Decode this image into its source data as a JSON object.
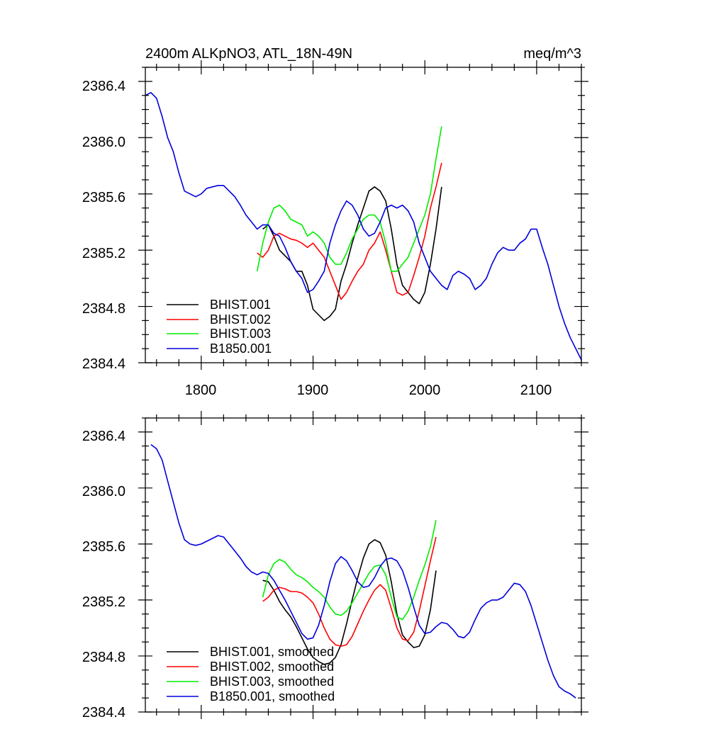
{
  "colors": {
    "BHIST.001": "#000000",
    "BHIST.002": "#ff0000",
    "BHIST.003": "#00ee00",
    "B1850.001": "#0000dd"
  },
  "chart_data": [
    {
      "type": "line",
      "title_left": "2400m ALKpNO3, ATL_18N-49N",
      "title_right": "meq/m^3",
      "xlim": [
        1750,
        2140
      ],
      "ylim": [
        2384.4,
        2386.5
      ],
      "x_ticks": [
        1800,
        1900,
        2000,
        2100
      ],
      "x_tick_labels": [
        "1800",
        "1900",
        "2000",
        "2100"
      ],
      "y_ticks": [
        2384.4,
        2384.8,
        2385.2,
        2385.6,
        2386.0,
        2386.4
      ],
      "y_tick_labels": [
        "2384.4",
        "2384.8",
        "2385.2",
        "2385.6",
        "2386.0",
        "2386.4"
      ],
      "legend_position": "bottom-left",
      "series": [
        {
          "name": "BHIST.001",
          "legend": "BHIST.001",
          "x": [
            1855,
            1860,
            1865,
            1870,
            1875,
            1880,
            1885,
            1890,
            1895,
            1900,
            1905,
            1910,
            1915,
            1920,
            1925,
            1930,
            1935,
            1940,
            1945,
            1950,
            1955,
            1960,
            1965,
            1970,
            1975,
            1980,
            1985,
            1990,
            1995,
            2000,
            2005,
            2010,
            2015
          ],
          "y": [
            2385.35,
            2385.38,
            2385.3,
            2385.2,
            2385.16,
            2385.12,
            2385.05,
            2385.05,
            2384.95,
            2384.78,
            2384.74,
            2384.7,
            2384.73,
            2384.78,
            2384.98,
            2385.1,
            2385.25,
            2385.38,
            2385.5,
            2385.62,
            2385.65,
            2385.62,
            2385.55,
            2385.35,
            2385.1,
            2384.95,
            2384.9,
            2384.85,
            2384.82,
            2384.9,
            2385.1,
            2385.35,
            2385.65
          ]
        },
        {
          "name": "BHIST.002",
          "legend": "BHIST.002",
          "x": [
            1850,
            1855,
            1860,
            1865,
            1870,
            1875,
            1880,
            1885,
            1890,
            1895,
            1900,
            1905,
            1910,
            1915,
            1920,
            1925,
            1930,
            1935,
            1940,
            1945,
            1950,
            1955,
            1960,
            1965,
            1970,
            1975,
            1980,
            1985,
            1990,
            1995,
            2000,
            2005,
            2010,
            2015
          ],
          "y": [
            2385.18,
            2385.15,
            2385.2,
            2385.3,
            2385.32,
            2385.3,
            2385.28,
            2385.27,
            2385.25,
            2385.22,
            2385.25,
            2385.2,
            2385.15,
            2385.05,
            2384.95,
            2384.85,
            2384.9,
            2384.98,
            2385.05,
            2385.1,
            2385.2,
            2385.25,
            2385.33,
            2385.2,
            2385.05,
            2384.9,
            2384.88,
            2384.9,
            2385.02,
            2385.15,
            2385.3,
            2385.5,
            2385.65,
            2385.82
          ]
        },
        {
          "name": "BHIST.003",
          "legend": "BHIST.003",
          "x": [
            1850,
            1855,
            1860,
            1865,
            1870,
            1875,
            1880,
            1885,
            1890,
            1895,
            1900,
            1905,
            1910,
            1915,
            1920,
            1925,
            1930,
            1935,
            1940,
            1945,
            1950,
            1955,
            1960,
            1965,
            1970,
            1975,
            1980,
            1985,
            1990,
            1995,
            2000,
            2005,
            2010,
            2015
          ],
          "y": [
            2385.05,
            2385.25,
            2385.4,
            2385.5,
            2385.52,
            2385.48,
            2385.42,
            2385.4,
            2385.38,
            2385.3,
            2385.33,
            2385.3,
            2385.25,
            2385.15,
            2385.1,
            2385.1,
            2385.18,
            2385.28,
            2385.35,
            2385.42,
            2385.45,
            2385.45,
            2385.4,
            2385.25,
            2385.05,
            2385.05,
            2385.1,
            2385.15,
            2385.25,
            2385.35,
            2385.45,
            2385.6,
            2385.85,
            2386.08
          ]
        },
        {
          "name": "B1850.001",
          "legend": "B1850.001",
          "x": [
            1750,
            1755,
            1760,
            1765,
            1770,
            1775,
            1780,
            1785,
            1790,
            1795,
            1800,
            1805,
            1810,
            1815,
            1820,
            1825,
            1830,
            1835,
            1840,
            1845,
            1850,
            1855,
            1860,
            1865,
            1870,
            1875,
            1880,
            1885,
            1890,
            1895,
            1900,
            1905,
            1910,
            1915,
            1920,
            1925,
            1930,
            1935,
            1940,
            1945,
            1950,
            1955,
            1960,
            1965,
            1970,
            1975,
            1980,
            1985,
            1990,
            1995,
            2000,
            2005,
            2010,
            2015,
            2020,
            2025,
            2030,
            2035,
            2040,
            2045,
            2050,
            2055,
            2060,
            2065,
            2070,
            2075,
            2080,
            2085,
            2090,
            2095,
            2100,
            2105,
            2110,
            2115,
            2120,
            2125,
            2130,
            2135,
            2140
          ],
          "y": [
            2386.3,
            2386.32,
            2386.28,
            2386.15,
            2386.0,
            2385.9,
            2385.75,
            2385.62,
            2385.6,
            2385.58,
            2385.6,
            2385.64,
            2385.65,
            2385.66,
            2385.66,
            2385.62,
            2385.58,
            2385.52,
            2385.45,
            2385.4,
            2385.35,
            2385.38,
            2385.38,
            2385.32,
            2385.3,
            2385.22,
            2385.12,
            2385.05,
            2385.0,
            2384.9,
            2384.92,
            2384.98,
            2385.05,
            2385.25,
            2385.38,
            2385.48,
            2385.55,
            2385.52,
            2385.45,
            2385.35,
            2385.3,
            2385.32,
            2385.4,
            2385.5,
            2385.52,
            2385.5,
            2385.52,
            2385.48,
            2385.4,
            2385.25,
            2385.15,
            2385.05,
            2385.0,
            2384.95,
            2384.92,
            2385.02,
            2385.05,
            2385.03,
            2385.0,
            2384.92,
            2384.95,
            2385.0,
            2385.1,
            2385.18,
            2385.22,
            2385.2,
            2385.2,
            2385.25,
            2385.28,
            2385.35,
            2385.35,
            2385.22,
            2385.1,
            2384.95,
            2384.8,
            2384.68,
            2384.58,
            2384.5,
            2384.42
          ]
        }
      ]
    },
    {
      "type": "line",
      "xlim": [
        1750,
        2140
      ],
      "ylim": [
        2384.4,
        2386.5
      ],
      "x_ticks": [
        1800,
        1900,
        2000,
        2100
      ],
      "y_ticks": [
        2384.4,
        2384.8,
        2385.2,
        2385.6,
        2386.0,
        2386.4
      ],
      "y_tick_labels": [
        "2384.4",
        "2384.8",
        "2385.2",
        "2385.6",
        "2386.0",
        "2386.4"
      ],
      "legend_position": "bottom-left",
      "series": [
        {
          "name": "BHIST.001",
          "legend": "BHIST.001, smoothed",
          "x": [
            1855,
            1860,
            1865,
            1870,
            1875,
            1880,
            1885,
            1890,
            1895,
            1900,
            1905,
            1910,
            1915,
            1920,
            1925,
            1930,
            1935,
            1940,
            1945,
            1950,
            1955,
            1960,
            1965,
            1970,
            1975,
            1980,
            1985,
            1990,
            1995,
            2000,
            2005,
            2010
          ],
          "y": [
            2385.34,
            2385.33,
            2385.27,
            2385.19,
            2385.13,
            2385.08,
            2385.01,
            2384.93,
            2384.85,
            2384.79,
            2384.76,
            2384.74,
            2384.75,
            2384.79,
            2384.88,
            2385.03,
            2385.2,
            2385.36,
            2385.5,
            2385.6,
            2385.63,
            2385.61,
            2385.52,
            2385.33,
            2385.1,
            2384.95,
            2384.9,
            2384.86,
            2384.87,
            2384.95,
            2385.13,
            2385.41
          ]
        },
        {
          "name": "BHIST.002",
          "legend": "BHIST.002, smoothed",
          "x": [
            1855,
            1860,
            1865,
            1870,
            1875,
            1880,
            1885,
            1890,
            1895,
            1900,
            1905,
            1910,
            1915,
            1920,
            1925,
            1930,
            1935,
            1940,
            1945,
            1950,
            1955,
            1960,
            1965,
            1970,
            1975,
            1980,
            1985,
            1990,
            1995,
            2000,
            2005,
            2010
          ],
          "y": [
            2385.19,
            2385.22,
            2385.27,
            2385.29,
            2385.28,
            2385.26,
            2385.26,
            2385.25,
            2385.22,
            2385.18,
            2385.1,
            2385.0,
            2384.92,
            2384.88,
            2384.87,
            2384.88,
            2384.94,
            2385.03,
            2385.12,
            2385.2,
            2385.27,
            2385.31,
            2385.27,
            2385.14,
            2385.0,
            2384.92,
            2384.91,
            2384.97,
            2385.12,
            2385.3,
            2385.48,
            2385.65
          ]
        },
        {
          "name": "BHIST.003",
          "legend": "BHIST.003, smoothed",
          "x": [
            1855,
            1860,
            1865,
            1870,
            1875,
            1880,
            1885,
            1890,
            1895,
            1900,
            1905,
            1910,
            1915,
            1920,
            1925,
            1930,
            1935,
            1940,
            1945,
            1950,
            1955,
            1960,
            1965,
            1970,
            1975,
            1980,
            1985,
            1990,
            1995,
            2000,
            2005,
            2010
          ],
          "y": [
            2385.22,
            2385.38,
            2385.46,
            2385.49,
            2385.47,
            2385.42,
            2385.38,
            2385.36,
            2385.33,
            2385.29,
            2385.26,
            2385.22,
            2385.15,
            2385.1,
            2385.09,
            2385.12,
            2385.18,
            2385.25,
            2385.32,
            2385.39,
            2385.44,
            2385.45,
            2385.38,
            2385.22,
            2385.08,
            2385.06,
            2385.12,
            2385.22,
            2385.34,
            2385.45,
            2385.58,
            2385.77
          ]
        },
        {
          "name": "B1850.001",
          "legend": "B1850.001, smoothed",
          "x": [
            1755,
            1760,
            1765,
            1770,
            1775,
            1780,
            1785,
            1790,
            1795,
            1800,
            1805,
            1810,
            1815,
            1820,
            1825,
            1830,
            1835,
            1840,
            1845,
            1850,
            1855,
            1860,
            1865,
            1870,
            1875,
            1880,
            1885,
            1890,
            1895,
            1900,
            1905,
            1910,
            1915,
            1920,
            1925,
            1930,
            1935,
            1940,
            1945,
            1950,
            1955,
            1960,
            1965,
            1970,
            1975,
            1980,
            1985,
            1990,
            1995,
            2000,
            2005,
            2010,
            2015,
            2020,
            2025,
            2030,
            2035,
            2040,
            2045,
            2050,
            2055,
            2060,
            2065,
            2070,
            2075,
            2080,
            2085,
            2090,
            2095,
            2100,
            2105,
            2110,
            2115,
            2120,
            2125,
            2130,
            2135
          ],
          "y": [
            2386.31,
            2386.28,
            2386.2,
            2386.05,
            2385.9,
            2385.75,
            2385.63,
            2385.6,
            2385.59,
            2385.6,
            2385.62,
            2385.64,
            2385.66,
            2385.65,
            2385.6,
            2385.55,
            2385.5,
            2385.44,
            2385.4,
            2385.38,
            2385.4,
            2385.39,
            2385.34,
            2385.27,
            2385.2,
            2385.12,
            2385.04,
            2384.96,
            2384.92,
            2384.93,
            2385.02,
            2385.16,
            2385.33,
            2385.46,
            2385.51,
            2385.48,
            2385.41,
            2385.33,
            2385.29,
            2385.3,
            2385.36,
            2385.44,
            2385.49,
            2385.5,
            2385.48,
            2385.41,
            2385.29,
            2385.15,
            2385.02,
            2384.96,
            2384.97,
            2385.01,
            2385.04,
            2385.03,
            2384.99,
            2384.94,
            2384.93,
            2384.97,
            2385.06,
            2385.14,
            2385.18,
            2385.2,
            2385.2,
            2385.22,
            2385.27,
            2385.32,
            2385.31,
            2385.26,
            2385.16,
            2385.03,
            2384.9,
            2384.77,
            2384.66,
            2384.58,
            2384.55,
            2384.53,
            2384.5
          ]
        }
      ]
    }
  ]
}
